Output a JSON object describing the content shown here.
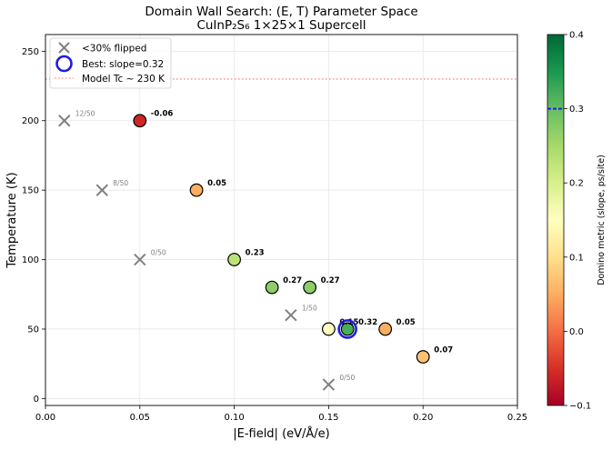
{
  "chart_data": {
    "type": "scatter",
    "title_line1": "Domain Wall Search: (E, T) Parameter Space",
    "title_line2": "CuInP₂S₆ 1×25×1 Supercell",
    "xlabel": "|E-field| (eV/Å/e)",
    "ylabel": "Temperature (K)",
    "xlim": [
      0.0,
      0.25
    ],
    "ylim": [
      -5,
      262
    ],
    "xticks": [
      "0.00",
      "0.05",
      "0.10",
      "0.15",
      "0.20",
      "0.25"
    ],
    "xtick_values": [
      0.0,
      0.05,
      0.1,
      0.15,
      0.2,
      0.25
    ],
    "yticks": [
      "0",
      "50",
      "100",
      "150",
      "200",
      "250"
    ],
    "ytick_values": [
      0,
      50,
      100,
      150,
      200,
      250
    ],
    "grid": true,
    "legend_position": "top-left",
    "legend": {
      "flipped_label": "<30% flipped",
      "best_label": "Best: slope=0.32",
      "tc_label": "Model Tc ~ 230 K"
    },
    "tc_line": 230,
    "colorbar": {
      "label": "Domino metric (slope, ps/site)",
      "min": -0.1,
      "max": 0.4,
      "ticks": [
        "−0.1",
        "0.0",
        "0.1",
        "0.2",
        "0.3",
        "0.4"
      ],
      "tick_values": [
        -0.1,
        0.0,
        0.1,
        0.2,
        0.3,
        0.4
      ],
      "best_marker": 0.3
    },
    "not_flipped": [
      {
        "x": 0.01,
        "y": 200,
        "label": "12/50"
      },
      {
        "x": 0.03,
        "y": 150,
        "label": "8/50"
      },
      {
        "x": 0.05,
        "y": 100,
        "label": "0/50"
      },
      {
        "x": 0.13,
        "y": 60,
        "label": "1/50"
      },
      {
        "x": 0.15,
        "y": 10,
        "label": "0/50"
      }
    ],
    "flipped": [
      {
        "x": 0.05,
        "y": 200,
        "value": -0.06,
        "label": "-0.06"
      },
      {
        "x": 0.08,
        "y": 150,
        "value": 0.05,
        "label": "0.05"
      },
      {
        "x": 0.1,
        "y": 100,
        "value": 0.23,
        "label": "0.23"
      },
      {
        "x": 0.12,
        "y": 80,
        "value": 0.27,
        "label": "0.27"
      },
      {
        "x": 0.14,
        "y": 80,
        "value": 0.27,
        "label": "0.27"
      },
      {
        "x": 0.15,
        "y": 50,
        "value": 0.15,
        "label": "0.15"
      },
      {
        "x": 0.16,
        "y": 50,
        "value": 0.32,
        "label": "0.32"
      },
      {
        "x": 0.18,
        "y": 50,
        "value": 0.05,
        "label": "0.05"
      },
      {
        "x": 0.2,
        "y": 30,
        "value": 0.07,
        "label": "0.07"
      }
    ],
    "best": {
      "x": 0.16,
      "y": 50
    }
  },
  "colors": {
    "cross": "#808080",
    "best_ring": "#1f1fdf",
    "tc_line": "#ff6b6b",
    "grid": "#e6e6e6"
  }
}
